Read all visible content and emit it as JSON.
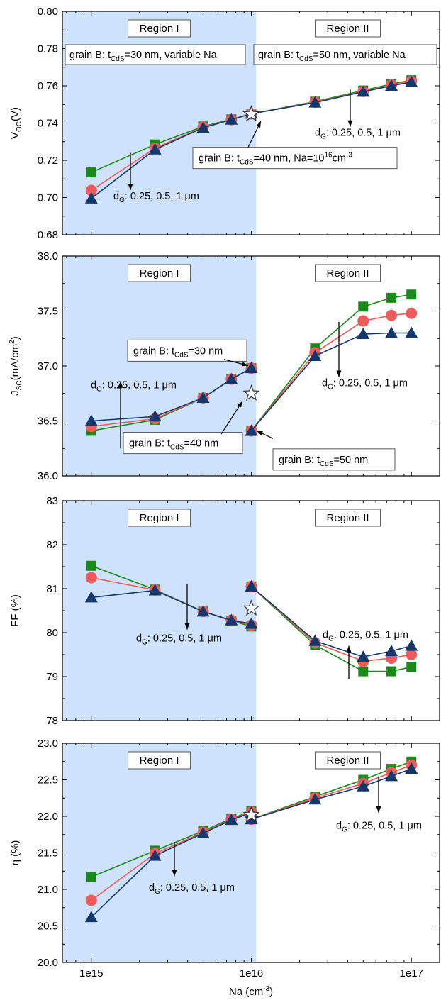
{
  "colors": {
    "region1_bg": "#cfe2fb",
    "series": [
      "#1a8a1a",
      "#f05a5a",
      "#13386e"
    ]
  },
  "chart_data": [
    {
      "type": "line",
      "panel": "voc",
      "ylabel": "V",
      "ylabel_sub": "OC",
      "ylabel_unit": "(V)",
      "ylim": [
        0.68,
        0.8
      ],
      "yticks": [
        0.68,
        0.7,
        0.72,
        0.74,
        0.76,
        0.78,
        0.8
      ],
      "ytick_labels": [
        "0.68",
        "0.70",
        "0.72",
        "0.74",
        "0.76",
        "0.78",
        "0.80"
      ],
      "x": [
        1000000000000000.0,
        2500000000000000.0,
        5000000000000000.0,
        7500000000000000.0,
        1e+16,
        2.5e+16,
        5e+16,
        7.5e+16,
        1e+17
      ],
      "series": [
        {
          "marker": "square",
          "color": "#1a8a1a",
          "values": [
            0.7135,
            0.7285,
            0.7382,
            0.742,
            0.745,
            0.7515,
            0.7575,
            0.761,
            0.763
          ]
        },
        {
          "marker": "circle",
          "color": "#f05a5a",
          "values": [
            0.7038,
            0.7265,
            0.7378,
            0.7418,
            0.745,
            0.7512,
            0.757,
            0.7605,
            0.7625
          ]
        },
        {
          "marker": "triangle",
          "color": "#13386e",
          "values": [
            0.6995,
            0.7258,
            0.7375,
            0.7418,
            0.745,
            0.751,
            0.7568,
            0.76,
            0.762
          ]
        }
      ],
      "star": {
        "x": 1e+16,
        "y": 0.7448
      },
      "regions": [
        "Region I",
        "Region II"
      ],
      "annotations": {
        "region1_caption": {
          "pre": "grain B: t",
          "sub": "CdS",
          "post": "=30 nm, variable Na"
        },
        "region2_caption": {
          "pre": "grain B: t",
          "sub": "CdS",
          "post": "=50 nm,  variable Na"
        },
        "center_caption": {
          "pre": "grain B: t",
          "sub": "CdS",
          "mid": "=40 nm, Na=10",
          "sup": "16",
          "post": "cm",
          "sup2": "-3"
        },
        "dg_left": {
          "pre": "d",
          "sub": "G",
          "post": ": 0.25, 0.5, 1 μm"
        },
        "dg_right": {
          "pre": "d",
          "sub": "G",
          "post": ": 0.25, 0.5, 1 μm"
        }
      }
    },
    {
      "type": "line",
      "panel": "jsc",
      "ylabel": "J",
      "ylabel_sub": "SC",
      "ylabel_unit": "(mA/cm",
      "ylabel_sup": "2",
      "ylabel_end": ")",
      "ylim": [
        36.0,
        38.0
      ],
      "yticks": [
        36.0,
        36.5,
        37.0,
        37.5,
        38.0
      ],
      "ytick_labels": [
        "36.0",
        "36.5",
        "37.0",
        "37.5",
        "38.0"
      ],
      "x": [
        1000000000000000.0,
        2500000000000000.0,
        5000000000000000.0,
        7500000000000000.0,
        1e+16,
        1e+16,
        2.5e+16,
        5e+16,
        7.5e+16,
        1e+17
      ],
      "series": [
        {
          "marker": "square",
          "color": "#1a8a1a",
          "values": [
            36.41,
            36.51,
            36.71,
            36.88,
            36.98,
            36.41,
            37.16,
            37.54,
            37.62,
            37.65
          ]
        },
        {
          "marker": "circle",
          "color": "#f05a5a",
          "values": [
            36.45,
            36.52,
            36.71,
            36.88,
            36.98,
            36.41,
            37.12,
            37.41,
            37.46,
            37.48
          ]
        },
        {
          "marker": "triangle",
          "color": "#13386e",
          "values": [
            36.5,
            36.54,
            36.71,
            36.88,
            36.98,
            36.41,
            37.09,
            37.29,
            37.3,
            37.3
          ]
        }
      ],
      "star": {
        "x": 1e+16,
        "y": 36.75
      },
      "regions": [
        "Region I",
        "Region II"
      ],
      "annotations": {
        "t30": {
          "pre": "grain B: t",
          "sub": "CdS",
          "post": "=30 nm"
        },
        "t40": {
          "pre": "grain B: t",
          "sub": "CdS",
          "post": "=40 nm"
        },
        "t50": {
          "pre": "grain B: t",
          "sub": "CdS",
          "post": "=50 nm"
        },
        "dg_left": {
          "pre": "d",
          "sub": "G",
          "post": ": 0.25, 0.5, 1 μm"
        },
        "dg_right": {
          "pre": "d",
          "sub": "G",
          "post": ": 0.25, 0.5, 1 μm"
        }
      }
    },
    {
      "type": "line",
      "panel": "ff",
      "ylabel": "FF (%)",
      "ylim": [
        78,
        83
      ],
      "yticks": [
        78,
        79,
        80,
        81,
        82,
        83
      ],
      "ytick_labels": [
        "78",
        "79",
        "80",
        "81",
        "82",
        "83"
      ],
      "x": [
        1000000000000000.0,
        2500000000000000.0,
        5000000000000000.0,
        7500000000000000.0,
        1e+16,
        1e+16,
        2.5e+16,
        5e+16,
        7.5e+16,
        1e+17
      ],
      "series": [
        {
          "marker": "square",
          "color": "#1a8a1a",
          "values": [
            81.52,
            80.98,
            80.48,
            80.27,
            80.14,
            81.05,
            79.72,
            79.12,
            79.12,
            79.22
          ]
        },
        {
          "marker": "circle",
          "color": "#f05a5a",
          "values": [
            81.25,
            80.97,
            80.48,
            80.28,
            80.17,
            81.05,
            79.77,
            79.35,
            79.42,
            79.5
          ]
        },
        {
          "marker": "triangle",
          "color": "#13386e",
          "values": [
            80.8,
            80.96,
            80.48,
            80.28,
            80.2,
            81.05,
            79.81,
            79.45,
            79.58,
            79.7
          ]
        }
      ],
      "star": {
        "x": 1e+16,
        "y": 80.55
      },
      "regions": [
        "Region I",
        "Region II"
      ],
      "annotations": {
        "dg_left": {
          "pre": "d",
          "sub": "G",
          "post": ": 0.25, 0.5, 1 μm"
        },
        "dg_right": {
          "pre": "d",
          "sub": "G",
          "post": ": 0.25, 0.5, 1 μm"
        }
      }
    },
    {
      "type": "line",
      "panel": "eta",
      "ylabel": "η (%)",
      "xlabel": "Na (cm",
      "xlabel_sup": "-3",
      "xlabel_end": ")",
      "ylim": [
        20.0,
        23.0
      ],
      "yticks": [
        20.0,
        20.5,
        21.0,
        21.5,
        22.0,
        22.5,
        23.0
      ],
      "ytick_labels": [
        "20.0",
        "20.5",
        "21.0",
        "21.5",
        "22.0",
        "22.5",
        "23.0"
      ],
      "xticks": [
        1000000000000000.0,
        1e+16,
        1e+17
      ],
      "xtick_labels": [
        "1e15",
        "1e16",
        "1e17"
      ],
      "x": [
        1000000000000000.0,
        2500000000000000.0,
        5000000000000000.0,
        7500000000000000.0,
        1e+16,
        1e+16,
        2.5e+16,
        5e+16,
        7.5e+16,
        1e+17
      ],
      "series": [
        {
          "marker": "square",
          "color": "#1a8a1a",
          "values": [
            21.17,
            21.53,
            21.8,
            21.97,
            22.07,
            21.96,
            22.27,
            22.5,
            22.65,
            22.75
          ]
        },
        {
          "marker": "circle",
          "color": "#f05a5a",
          "values": [
            20.85,
            21.49,
            21.78,
            21.96,
            22.06,
            21.96,
            22.25,
            22.45,
            22.6,
            22.7
          ]
        },
        {
          "marker": "triangle",
          "color": "#13386e",
          "values": [
            20.62,
            21.46,
            21.77,
            21.95,
            22.05,
            21.96,
            22.23,
            22.41,
            22.55,
            22.65
          ]
        }
      ],
      "star": {
        "x": 1e+16,
        "y": 22.02
      },
      "regions": [
        "Region I",
        "Region II"
      ],
      "annotations": {
        "dg_left": {
          "pre": "d",
          "sub": "G",
          "post": ": 0.25, 0.5, 1 μm"
        },
        "dg_right": {
          "pre": "d",
          "sub": "G",
          "post": ": 0.25, 0.5, 1 μm"
        }
      }
    }
  ]
}
